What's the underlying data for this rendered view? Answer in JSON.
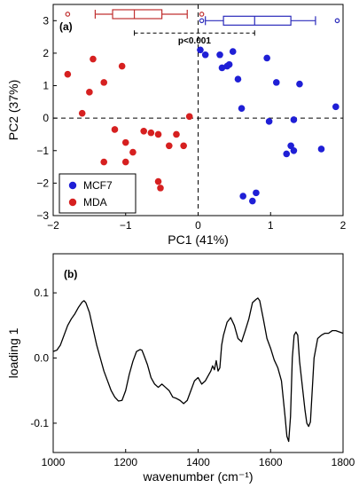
{
  "chart_data": [
    {
      "panel_label": "(a)",
      "type": "scatter",
      "xlabel": "PC1 (41%)",
      "ylabel": "PC2 (37%)",
      "xlim": [
        -2,
        2
      ],
      "ylim": [
        -3,
        3.5
      ],
      "x_ticks": [
        -2,
        -1,
        0,
        1,
        2
      ],
      "x_tick_labels": [
        "−2",
        "−1",
        "0",
        "1",
        "2"
      ],
      "y_ticks": [
        -3,
        -2,
        -1,
        0,
        1,
        2,
        3
      ],
      "y_tick_labels": [
        "−3",
        "−2",
        "−1",
        "0",
        "1",
        "2",
        "3"
      ],
      "zero_lines": "dashed",
      "legend_position": "bottom-left",
      "series": [
        {
          "name": "MCF7",
          "color": "#1f1fd6",
          "points": [
            [
              0.03,
              2.1
            ],
            [
              0.1,
              1.95
            ],
            [
              0.3,
              1.95
            ],
            [
              0.48,
              2.05
            ],
            [
              0.33,
              1.55
            ],
            [
              0.4,
              1.6
            ],
            [
              0.43,
              1.65
            ],
            [
              0.55,
              1.2
            ],
            [
              0.6,
              0.3
            ],
            [
              0.95,
              1.85
            ],
            [
              1.08,
              1.1
            ],
            [
              1.4,
              1.05
            ],
            [
              1.9,
              0.35
            ],
            [
              0.98,
              -0.1
            ],
            [
              1.32,
              -0.05
            ],
            [
              1.28,
              -0.85
            ],
            [
              1.32,
              -1.0
            ],
            [
              1.22,
              -1.1
            ],
            [
              1.7,
              -0.95
            ],
            [
              0.62,
              -2.4
            ],
            [
              0.8,
              -2.3
            ],
            [
              0.75,
              -2.55
            ]
          ]
        },
        {
          "name": "MDA",
          "color": "#d62020",
          "points": [
            [
              -1.45,
              1.82
            ],
            [
              -1.05,
              1.6
            ],
            [
              -1.8,
              1.35
            ],
            [
              -1.3,
              1.1
            ],
            [
              -1.5,
              0.8
            ],
            [
              -1.6,
              0.15
            ],
            [
              -1.15,
              -0.35
            ],
            [
              -0.75,
              -0.4
            ],
            [
              -0.65,
              -0.45
            ],
            [
              -0.55,
              -0.5
            ],
            [
              -0.3,
              -0.5
            ],
            [
              -0.12,
              0.05
            ],
            [
              -0.2,
              -0.85
            ],
            [
              -0.4,
              -0.85
            ],
            [
              -1.0,
              -0.75
            ],
            [
              -0.9,
              -1.05
            ],
            [
              -1.0,
              -1.35
            ],
            [
              -1.3,
              -1.35
            ],
            [
              -0.55,
              -1.95
            ],
            [
              -0.52,
              -2.15
            ]
          ]
        }
      ],
      "boxplots": [
        {
          "series": "MDA",
          "color": "#c03030",
          "whisker_low": -1.42,
          "q1": -1.18,
          "median": -0.88,
          "q3": -0.5,
          "whisker_high": -0.15,
          "outliers": [
            -1.8,
            0.05
          ],
          "y": 3.2
        },
        {
          "series": "MCF7",
          "color": "#2b2bbb",
          "whisker_low": 0.1,
          "q1": 0.35,
          "median": 0.78,
          "q3": 1.28,
          "whisker_high": 1.62,
          "outliers": [
            0.05,
            1.92
          ],
          "y": 3.0
        }
      ],
      "significance": {
        "label": "p<0.001",
        "from": -0.88,
        "to": 0.78,
        "y": 2.62
      }
    },
    {
      "panel_label": "(b)",
      "type": "line",
      "xlabel": "wavenumber (cm⁻¹)",
      "ylabel": "loading 1",
      "xlim": [
        1000,
        1800
      ],
      "ylim": [
        -0.145,
        0.16
      ],
      "x_ticks": [
        1000,
        1200,
        1400,
        1600,
        1800
      ],
      "x_tick_labels": [
        "1000",
        "1200",
        "1400",
        "1600",
        "1800"
      ],
      "y_ticks": [
        -0.1,
        0.0,
        0.1
      ],
      "y_tick_labels": [
        "-0.1",
        "0.0",
        "0.1"
      ],
      "x": [
        1000,
        1010,
        1020,
        1030,
        1040,
        1050,
        1060,
        1070,
        1080,
        1085,
        1090,
        1100,
        1110,
        1120,
        1130,
        1140,
        1150,
        1160,
        1170,
        1180,
        1190,
        1200,
        1210,
        1220,
        1230,
        1240,
        1245,
        1250,
        1260,
        1270,
        1280,
        1290,
        1300,
        1310,
        1320,
        1330,
        1340,
        1350,
        1360,
        1370,
        1380,
        1390,
        1400,
        1410,
        1420,
        1430,
        1435,
        1440,
        1445,
        1450,
        1455,
        1460,
        1465,
        1470,
        1480,
        1490,
        1500,
        1510,
        1520,
        1530,
        1540,
        1550,
        1560,
        1565,
        1570,
        1580,
        1590,
        1600,
        1610,
        1620,
        1630,
        1640,
        1645,
        1650,
        1655,
        1660,
        1665,
        1670,
        1675,
        1680,
        1685,
        1690,
        1695,
        1700,
        1705,
        1710,
        1720,
        1730,
        1740,
        1750,
        1760,
        1770,
        1780,
        1790,
        1800
      ],
      "y": [
        0.01,
        0.012,
        0.02,
        0.035,
        0.05,
        0.06,
        0.068,
        0.078,
        0.086,
        0.088,
        0.085,
        0.07,
        0.045,
        0.02,
        0.0,
        -0.02,
        -0.035,
        -0.05,
        -0.06,
        -0.066,
        -0.065,
        -0.05,
        -0.025,
        -0.005,
        0.01,
        0.013,
        0.012,
        0.005,
        -0.01,
        -0.03,
        -0.04,
        -0.045,
        -0.04,
        -0.045,
        -0.05,
        -0.06,
        -0.062,
        -0.065,
        -0.07,
        -0.065,
        -0.05,
        -0.035,
        -0.03,
        -0.04,
        -0.035,
        -0.025,
        -0.02,
        -0.012,
        -0.018,
        -0.004,
        -0.02,
        -0.015,
        0.02,
        0.035,
        0.055,
        0.062,
        0.05,
        0.03,
        0.025,
        0.042,
        0.06,
        0.085,
        0.09,
        0.092,
        0.088,
        0.06,
        0.03,
        0.015,
        -0.003,
        -0.015,
        -0.035,
        -0.09,
        -0.12,
        -0.128,
        -0.09,
        0.0,
        0.035,
        0.04,
        0.035,
        -0.005,
        -0.03,
        -0.055,
        -0.08,
        -0.1,
        -0.105,
        -0.098,
        0.0,
        0.03,
        0.035,
        0.038,
        0.038,
        0.042,
        0.042,
        0.04,
        0.038
      ]
    }
  ]
}
